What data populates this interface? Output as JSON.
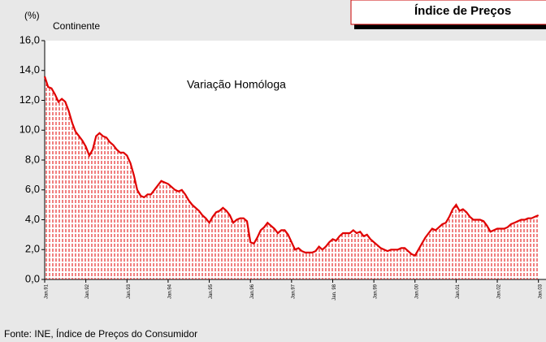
{
  "chart_data": {
    "type": "area",
    "title": "Índice de Preços",
    "subtitle": "Continente",
    "y_unit": "(%)",
    "annotation": "Variação Homóloga",
    "source": "Fonte: INE, Índice de Preços do Consumidor",
    "color": "#e00000",
    "categories": [
      "Jan.91",
      null,
      null,
      null,
      null,
      null,
      null,
      null,
      null,
      null,
      null,
      null,
      "Jan.92",
      null,
      null,
      null,
      null,
      null,
      null,
      null,
      null,
      null,
      null,
      null,
      "Jan.93",
      null,
      null,
      null,
      null,
      null,
      null,
      null,
      null,
      null,
      null,
      null,
      "Jan.94",
      null,
      null,
      null,
      null,
      null,
      null,
      null,
      null,
      null,
      null,
      null,
      "Jan.95",
      null,
      null,
      null,
      null,
      null,
      null,
      null,
      null,
      null,
      null,
      null,
      "Jan.96",
      null,
      null,
      null,
      null,
      null,
      null,
      null,
      null,
      null,
      null,
      null,
      "Jan.97",
      null,
      null,
      null,
      null,
      null,
      null,
      null,
      null,
      null,
      null,
      null,
      "Jan. 98",
      null,
      null,
      null,
      null,
      null,
      null,
      null,
      null,
      null,
      null,
      null,
      "Jan.99",
      null,
      null,
      null,
      null,
      null,
      null,
      null,
      null,
      null,
      null,
      null,
      "Jan.00",
      null,
      null,
      null,
      null,
      null,
      null,
      null,
      null,
      null,
      null,
      null,
      "Jan.01",
      null,
      null,
      null,
      null,
      null,
      null,
      null,
      null,
      null,
      null,
      null,
      "Jan.02",
      null,
      null,
      null,
      null,
      null,
      null,
      null,
      null,
      null,
      null,
      null,
      "Jan.03"
    ],
    "values": [
      13.6,
      12.9,
      12.8,
      12.4,
      11.9,
      12.1,
      11.9,
      11.3,
      10.5,
      9.9,
      9.6,
      9.3,
      8.9,
      8.3,
      8.7,
      9.6,
      9.8,
      9.6,
      9.5,
      9.2,
      9.0,
      8.7,
      8.5,
      8.5,
      8.3,
      7.8,
      7.0,
      6.0,
      5.6,
      5.5,
      5.7,
      5.7,
      6.0,
      6.3,
      6.6,
      6.5,
      6.4,
      6.2,
      6.0,
      5.9,
      6.0,
      5.7,
      5.3,
      5.0,
      4.8,
      4.6,
      4.3,
      4.1,
      3.8,
      4.2,
      4.5,
      4.6,
      4.8,
      4.6,
      4.3,
      3.8,
      4.0,
      4.1,
      4.1,
      3.9,
      2.5,
      2.4,
      2.8,
      3.3,
      3.5,
      3.8,
      3.6,
      3.4,
      3.1,
      3.3,
      3.3,
      3.0,
      2.5,
      2.0,
      2.1,
      1.9,
      1.8,
      1.8,
      1.8,
      1.9,
      2.2,
      2.0,
      2.2,
      2.5,
      2.7,
      2.6,
      2.9,
      3.1,
      3.1,
      3.1,
      3.3,
      3.1,
      3.2,
      2.9,
      3.0,
      2.7,
      2.5,
      2.3,
      2.1,
      2.0,
      1.9,
      2.0,
      2.0,
      2.0,
      2.1,
      2.1,
      1.9,
      1.7,
      1.6,
      2.0,
      2.4,
      2.8,
      3.1,
      3.4,
      3.3,
      3.5,
      3.7,
      3.8,
      4.2,
      4.7,
      5.0,
      4.6,
      4.7,
      4.5,
      4.2,
      4.0,
      4.0,
      4.0,
      3.9,
      3.6,
      3.2,
      3.3,
      3.4,
      3.4,
      3.4,
      3.5,
      3.7,
      3.8,
      3.9,
      4.0,
      4.0,
      4.1,
      4.1,
      4.2,
      4.3
    ],
    "ylim": [
      0,
      16
    ],
    "yticks": [
      {
        "value": 0,
        "label": "0,0"
      },
      {
        "value": 2,
        "label": "2,0"
      },
      {
        "value": 4,
        "label": "4,0"
      },
      {
        "value": 6,
        "label": "6,0"
      },
      {
        "value": 8,
        "label": "8,0"
      },
      {
        "value": 10,
        "label": "10,0"
      },
      {
        "value": 12,
        "label": "12,0"
      },
      {
        "value": 14,
        "label": "14,0"
      },
      {
        "value": 16,
        "label": "16,0"
      }
    ]
  }
}
